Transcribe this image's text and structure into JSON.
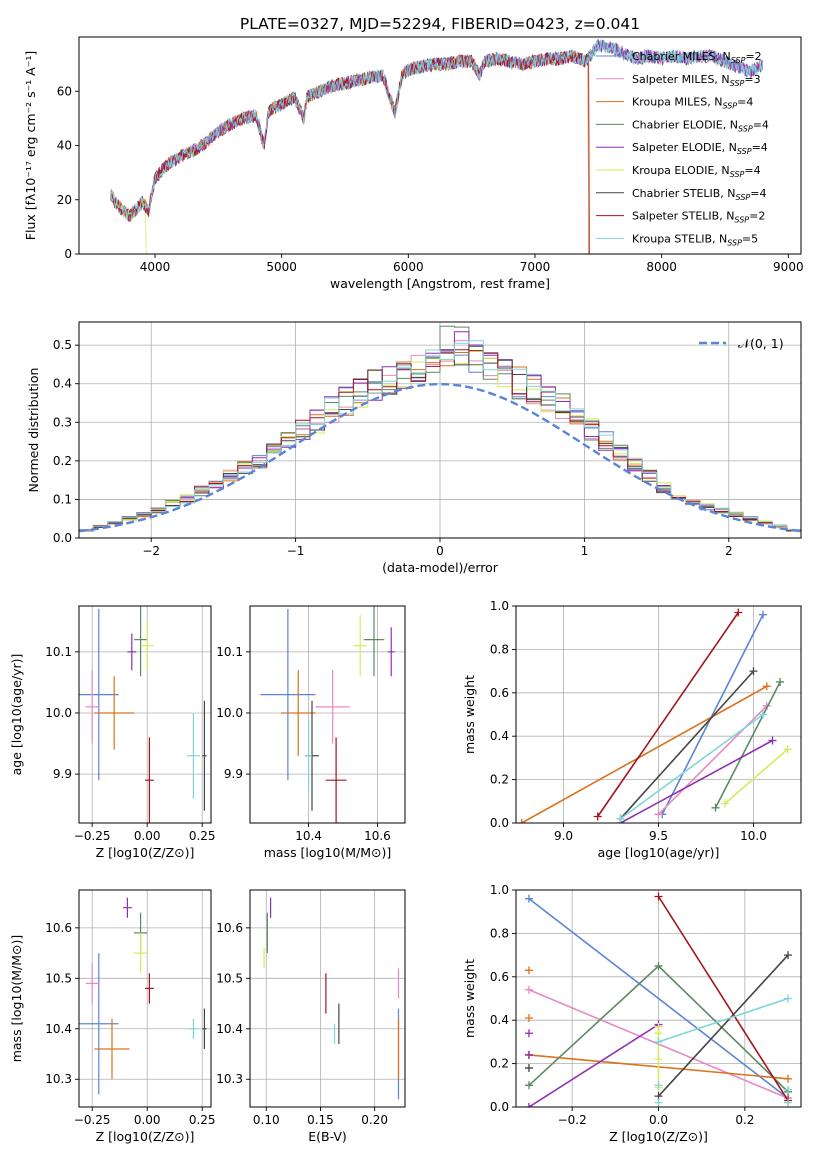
{
  "title": "PLATE=0327, MJD=52294, FIBERID=0423, z=0.041",
  "series_styles": [
    {
      "name": "Chabrier MILES, N_SSP=2",
      "name_main": "Chabrier MILES, N",
      "name_sub": "SSP",
      "name_tail": "=2",
      "color": "#5b84d6"
    },
    {
      "name": "Salpeter MILES, N_SSP=3",
      "name_main": "Salpeter MILES, N",
      "name_sub": "SSP",
      "name_tail": "=3",
      "color": "#e889c4"
    },
    {
      "name": "Kroupa MILES, N_SSP=4",
      "name_main": "Kroupa MILES, N",
      "name_sub": "SSP",
      "name_tail": "=4",
      "color": "#d9731e"
    },
    {
      "name": "Chabrier ELODIE, N_SSP=4",
      "name_main": "Chabrier ELODIE, N",
      "name_sub": "SSP",
      "name_tail": "=4",
      "color": "#5b8a63"
    },
    {
      "name": "Salpeter ELODIE, N_SSP=4",
      "name_main": "Salpeter ELODIE, N",
      "name_sub": "SSP",
      "name_tail": "=4",
      "color": "#8f2fb5"
    },
    {
      "name": "Kroupa ELODIE, N_SSP=4",
      "name_main": "Kroupa ELODIE, N",
      "name_sub": "SSP",
      "name_tail": "=4",
      "color": "#d8e85a"
    },
    {
      "name": "Chabrier STELIB, N_SSP=4",
      "name_main": "Chabrier STELIB, N",
      "name_sub": "SSP",
      "name_tail": "=4",
      "color": "#454545"
    },
    {
      "name": "Salpeter STELIB, N_SSP=2",
      "name_main": "Salpeter STELIB, N",
      "name_sub": "SSP",
      "name_tail": "=2",
      "color": "#a3141b"
    },
    {
      "name": "Kroupa STELIB, N_SSP=5",
      "name_main": "Kroupa STELIB, N",
      "name_sub": "SSP",
      "name_tail": "=5",
      "color": "#7fd6d8"
    }
  ],
  "chart_data": [
    {
      "id": "spectrum",
      "type": "line",
      "xlabel": "wavelength [Angstrom, rest frame]",
      "ylabel": "Flux [f_λ10^-17 erg cm^-2 s^-1 A^-1]",
      "ylabel_text": "Flux [fλ10⁻¹⁷ erg cm⁻² s⁻¹ A⁻¹]",
      "xlim": [
        3400,
        9100
      ],
      "ylim": [
        0,
        80
      ],
      "xticks": [
        4000,
        5000,
        6000,
        7000,
        8000,
        9000
      ],
      "yticks": [
        0,
        20,
        40,
        60
      ],
      "grid": false,
      "legend": "right",
      "flux_anchor_x": [
        3650,
        3700,
        3800,
        3900,
        3950,
        4000,
        4100,
        4200,
        4300,
        4400,
        4500,
        4600,
        4700,
        4800,
        4860,
        4900,
        5000,
        5100,
        5175,
        5200,
        5300,
        5400,
        5500,
        5600,
        5700,
        5800,
        5893,
        5950,
        6000,
        6100,
        6200,
        6300,
        6400,
        6500,
        6563,
        6600,
        6700,
        6800,
        6900,
        7000,
        7100,
        7200,
        7300,
        7400,
        7500,
        7600,
        7700,
        7800,
        7900,
        8000,
        8100,
        8200,
        8300,
        8400,
        8500,
        8600,
        8700,
        8800
      ],
      "flux_anchor_y": [
        22,
        18,
        14,
        19,
        16,
        28,
        33,
        36,
        38,
        41,
        45,
        48,
        50,
        51,
        40,
        53,
        55,
        58,
        50,
        58,
        60,
        62,
        63,
        64,
        65,
        66,
        52,
        66,
        68,
        69,
        70,
        70,
        71,
        71,
        66,
        71,
        72,
        71,
        70,
        71,
        72,
        72,
        73,
        71,
        77,
        76,
        74,
        72,
        73,
        72,
        73,
        72,
        73,
        73,
        71,
        69,
        67,
        70
      ],
      "dropouts": [
        {
          "series": 5,
          "start": 3900,
          "x": 3930
        },
        {
          "series": 5,
          "start": 6790,
          "x": 6790
        },
        {
          "series": 2,
          "start": 7420,
          "x": 7420
        },
        {
          "series": 7,
          "start": 7430,
          "x": 7430
        }
      ]
    },
    {
      "id": "residual_hist",
      "type": "bar",
      "xlabel": "(data-model)/error",
      "ylabel": "Normed distribution",
      "xlim": [
        -2.5,
        2.5
      ],
      "ylim": [
        0,
        0.56
      ],
      "xticks": [
        -2,
        -1,
        0,
        1,
        2
      ],
      "yticks": [
        0.0,
        0.1,
        0.2,
        0.3,
        0.4,
        0.5
      ],
      "grid": true,
      "legend": "top-right",
      "legend_label": "𝒩(0, 1)",
      "bin_width": 0.1,
      "base_hist": [
        0.02,
        0.03,
        0.04,
        0.05,
        0.06,
        0.07,
        0.09,
        0.1,
        0.12,
        0.14,
        0.16,
        0.18,
        0.2,
        0.23,
        0.25,
        0.28,
        0.3,
        0.33,
        0.35,
        0.37,
        0.39,
        0.41,
        0.43,
        0.45,
        0.46,
        0.47,
        0.47,
        0.46,
        0.44,
        0.42,
        0.4,
        0.38,
        0.36,
        0.34,
        0.31,
        0.28,
        0.25,
        0.22,
        0.19,
        0.16,
        0.13,
        0.11,
        0.09,
        0.08,
        0.07,
        0.06,
        0.05,
        0.04,
        0.03,
        0.02
      ]
    },
    {
      "id": "age_vs_Z",
      "type": "scatter",
      "xlabel": "Z [log10(Z/Z⊙)]",
      "ylabel": "age [log10(age/yr)]",
      "xlim": [
        -0.31,
        0.29
      ],
      "ylim": [
        9.82,
        10.175
      ],
      "xticks": [
        -0.25,
        0.0,
        0.25
      ],
      "yticks": [
        9.9,
        10.0,
        10.1
      ],
      "grid": true,
      "points": [
        {
          "s": 0,
          "x": -0.22,
          "y": 10.03,
          "ex": 0.09,
          "ey": 0.14
        },
        {
          "s": 1,
          "x": -0.25,
          "y": 10.01,
          "ex": 0.03,
          "ey": 0.06
        },
        {
          "s": 2,
          "x": -0.15,
          "y": 10.0,
          "ex": 0.09,
          "ey": 0.06
        },
        {
          "s": 3,
          "x": -0.03,
          "y": 10.12,
          "ex": 0.03,
          "ey": 0.06
        },
        {
          "s": 4,
          "x": -0.07,
          "y": 10.1,
          "ex": 0.02,
          "ey": 0.03
        },
        {
          "s": 5,
          "x": 0.0,
          "y": 10.11,
          "ex": 0.03,
          "ey": 0.04
        },
        {
          "s": 6,
          "x": 0.26,
          "y": 9.93,
          "ex": 0.01,
          "ey": 0.09
        },
        {
          "s": 7,
          "x": 0.01,
          "y": 9.89,
          "ex": 0.02,
          "ey": 0.07
        },
        {
          "s": 8,
          "x": 0.21,
          "y": 9.93,
          "ex": 0.03,
          "ey": 0.07
        }
      ]
    },
    {
      "id": "age_vs_mass",
      "type": "scatter",
      "xlabel": "mass [log10(M/M⊙)]",
      "ylabel": "",
      "xlim": [
        10.23,
        10.68
      ],
      "ylim": [
        9.82,
        10.175
      ],
      "xticks": [
        10.4,
        10.6
      ],
      "yticks": [
        9.9,
        10.0,
        10.1
      ],
      "grid": true,
      "points": [
        {
          "s": 0,
          "x": 10.34,
          "y": 10.03,
          "ex": 0.08,
          "ey": 0.14
        },
        {
          "s": 1,
          "x": 10.47,
          "y": 10.01,
          "ex": 0.05,
          "ey": 0.06
        },
        {
          "s": 2,
          "x": 10.37,
          "y": 10.0,
          "ex": 0.05,
          "ey": 0.07
        },
        {
          "s": 3,
          "x": 10.59,
          "y": 10.12,
          "ex": 0.03,
          "ey": 0.06
        },
        {
          "s": 4,
          "x": 10.64,
          "y": 10.1,
          "ex": 0.01,
          "ey": 0.04
        },
        {
          "s": 5,
          "x": 10.55,
          "y": 10.11,
          "ex": 0.02,
          "ey": 0.05
        },
        {
          "s": 6,
          "x": 10.41,
          "y": 9.93,
          "ex": 0.02,
          "ey": 0.09
        },
        {
          "s": 7,
          "x": 10.48,
          "y": 9.89,
          "ex": 0.03,
          "ey": 0.07
        },
        {
          "s": 8,
          "x": 10.4,
          "y": 9.93,
          "ex": 0.01,
          "ey": 0.06
        }
      ]
    },
    {
      "id": "massweight_vs_age",
      "type": "line",
      "xlabel": "age [log10(age/yr)]",
      "ylabel": "mass weight",
      "xlim": [
        8.75,
        10.25
      ],
      "ylim": [
        0,
        1
      ],
      "xticks": [
        9.0,
        9.5,
        10.0
      ],
      "yticks": [
        0.0,
        0.2,
        0.4,
        0.6,
        0.8,
        1.0
      ],
      "grid": true,
      "lines": [
        {
          "s": 0,
          "x": [
            9.52,
            10.05
          ],
          "y": [
            0.04,
            0.96
          ]
        },
        {
          "s": 1,
          "x": [
            9.5,
            10.07
          ],
          "y": [
            0.04,
            0.54
          ]
        },
        {
          "s": 2,
          "x": [
            8.78,
            10.07
          ],
          "y": [
            0.0,
            0.63
          ]
        },
        {
          "s": 3,
          "x": [
            9.8,
            10.14
          ],
          "y": [
            0.07,
            0.65
          ]
        },
        {
          "s": 4,
          "x": [
            9.3,
            10.1
          ],
          "y": [
            0.0,
            0.38
          ]
        },
        {
          "s": 5,
          "x": [
            9.85,
            10.18
          ],
          "y": [
            0.09,
            0.34
          ]
        },
        {
          "s": 6,
          "x": [
            9.3,
            10.0
          ],
          "y": [
            0.02,
            0.7
          ]
        },
        {
          "s": 7,
          "x": [
            9.18,
            9.92
          ],
          "y": [
            0.03,
            0.97
          ]
        },
        {
          "s": 8,
          "x": [
            9.3,
            10.05
          ],
          "y": [
            0.02,
            0.5
          ]
        }
      ]
    },
    {
      "id": "mass_vs_Z",
      "type": "scatter",
      "xlabel": "Z [log10(Z/Z⊙)]",
      "ylabel": "mass [log10(M/M⊙)]",
      "xlim": [
        -0.31,
        0.29
      ],
      "ylim": [
        10.245,
        10.675
      ],
      "xticks": [
        -0.25,
        0.0,
        0.25
      ],
      "yticks": [
        10.3,
        10.4,
        10.5,
        10.6
      ],
      "grid": true,
      "points": [
        {
          "s": 0,
          "x": -0.22,
          "y": 10.41,
          "ex": 0.09,
          "ey": 0.14
        },
        {
          "s": 1,
          "x": -0.25,
          "y": 10.49,
          "ex": 0.03,
          "ey": 0.04
        },
        {
          "s": 2,
          "x": -0.16,
          "y": 10.36,
          "ex": 0.08,
          "ey": 0.06
        },
        {
          "s": 3,
          "x": -0.03,
          "y": 10.59,
          "ex": 0.03,
          "ey": 0.04
        },
        {
          "s": 4,
          "x": -0.09,
          "y": 10.64,
          "ex": 0.02,
          "ey": 0.02
        },
        {
          "s": 5,
          "x": -0.03,
          "y": 10.55,
          "ex": 0.03,
          "ey": 0.04
        },
        {
          "s": 6,
          "x": 0.26,
          "y": 10.4,
          "ex": 0.01,
          "ey": 0.04
        },
        {
          "s": 7,
          "x": 0.01,
          "y": 10.48,
          "ex": 0.02,
          "ey": 0.03
        },
        {
          "s": 8,
          "x": 0.21,
          "y": 10.4,
          "ex": 0.02,
          "ey": 0.02
        }
      ]
    },
    {
      "id": "mass_vs_ebv",
      "type": "scatter",
      "xlabel": "E(B-V)",
      "ylabel": "",
      "xlim": [
        0.085,
        0.228
      ],
      "ylim": [
        10.245,
        10.675
      ],
      "xticks": [
        0.1,
        0.15,
        0.2
      ],
      "yticks": [
        10.3,
        10.4,
        10.5,
        10.6
      ],
      "grid": true,
      "points": [
        {
          "s": 0,
          "x": 0.222,
          "y": 10.35,
          "ex": 0.0,
          "ey": 0.09
        },
        {
          "s": 1,
          "x": 0.222,
          "y": 10.49,
          "ex": 0.0,
          "ey": 0.03
        },
        {
          "s": 2,
          "x": 0.222,
          "y": 10.36,
          "ex": 0.0,
          "ey": 0.06
        },
        {
          "s": 3,
          "x": 0.101,
          "y": 10.59,
          "ex": 0.0,
          "ey": 0.04
        },
        {
          "s": 4,
          "x": 0.104,
          "y": 10.64,
          "ex": 0.0,
          "ey": 0.02
        },
        {
          "s": 5,
          "x": 0.098,
          "y": 10.54,
          "ex": 0.0,
          "ey": 0.02
        },
        {
          "s": 6,
          "x": 0.167,
          "y": 10.41,
          "ex": 0.0,
          "ey": 0.04
        },
        {
          "s": 7,
          "x": 0.155,
          "y": 10.47,
          "ex": 0.0,
          "ey": 0.04
        },
        {
          "s": 8,
          "x": 0.163,
          "y": 10.39,
          "ex": 0.0,
          "ey": 0.02
        }
      ]
    },
    {
      "id": "massweight_vs_Z",
      "type": "line",
      "xlabel": "Z [log10(Z/Z⊙)]",
      "ylabel": "mass weight",
      "xlim": [
        -0.33,
        0.33
      ],
      "ylim": [
        0,
        1
      ],
      "xticks": [
        -0.2,
        0.0,
        0.2
      ],
      "yticks": [
        0.0,
        0.2,
        0.4,
        0.6,
        0.8,
        1.0
      ],
      "grid": true,
      "lines": [
        {
          "s": 0,
          "x": [
            -0.3,
            0.3
          ],
          "y": [
            0.96,
            0.04
          ]
        },
        {
          "s": 1,
          "x": [
            -0.3,
            0.3
          ],
          "y": [
            0.54,
            0.04
          ]
        },
        {
          "s": 2,
          "x": [
            -0.3,
            0.3
          ],
          "y": [
            0.24,
            0.13
          ]
        },
        {
          "s": 3,
          "x": [
            -0.3,
            0.0,
            0.3
          ],
          "y": [
            0.1,
            0.65,
            0.07
          ]
        },
        {
          "s": 4,
          "x": [
            -0.3,
            0.0
          ],
          "y": [
            0.0,
            0.38
          ]
        },
        {
          "s": 5,
          "x": [
            0.0,
            0.0
          ],
          "y": [
            0.09,
            0.37
          ]
        },
        {
          "s": 6,
          "x": [
            0.0,
            0.3
          ],
          "y": [
            0.05,
            0.7
          ]
        },
        {
          "s": 7,
          "x": [
            0.0,
            0.3
          ],
          "y": [
            0.97,
            0.03
          ]
        },
        {
          "s": 8,
          "x": [
            0.0,
            0.3
          ],
          "y": [
            0.3,
            0.5
          ]
        }
      ],
      "extra_markers": [
        {
          "s": 2,
          "x": -0.3,
          "y": [
            0.63,
            0.41,
            0.24
          ]
        },
        {
          "s": 6,
          "x": -0.3,
          "y": [
            0.18
          ]
        },
        {
          "s": 4,
          "x": -0.3,
          "y": [
            0.34,
            0.24
          ]
        },
        {
          "s": 8,
          "x": 0.0,
          "y": [
            0.1,
            0.02
          ]
        },
        {
          "s": 8,
          "x": 0.3,
          "y": [
            0.02,
            0.08
          ]
        },
        {
          "s": 5,
          "x": 0.0,
          "y": [
            0.34,
            0.22
          ]
        }
      ]
    }
  ]
}
